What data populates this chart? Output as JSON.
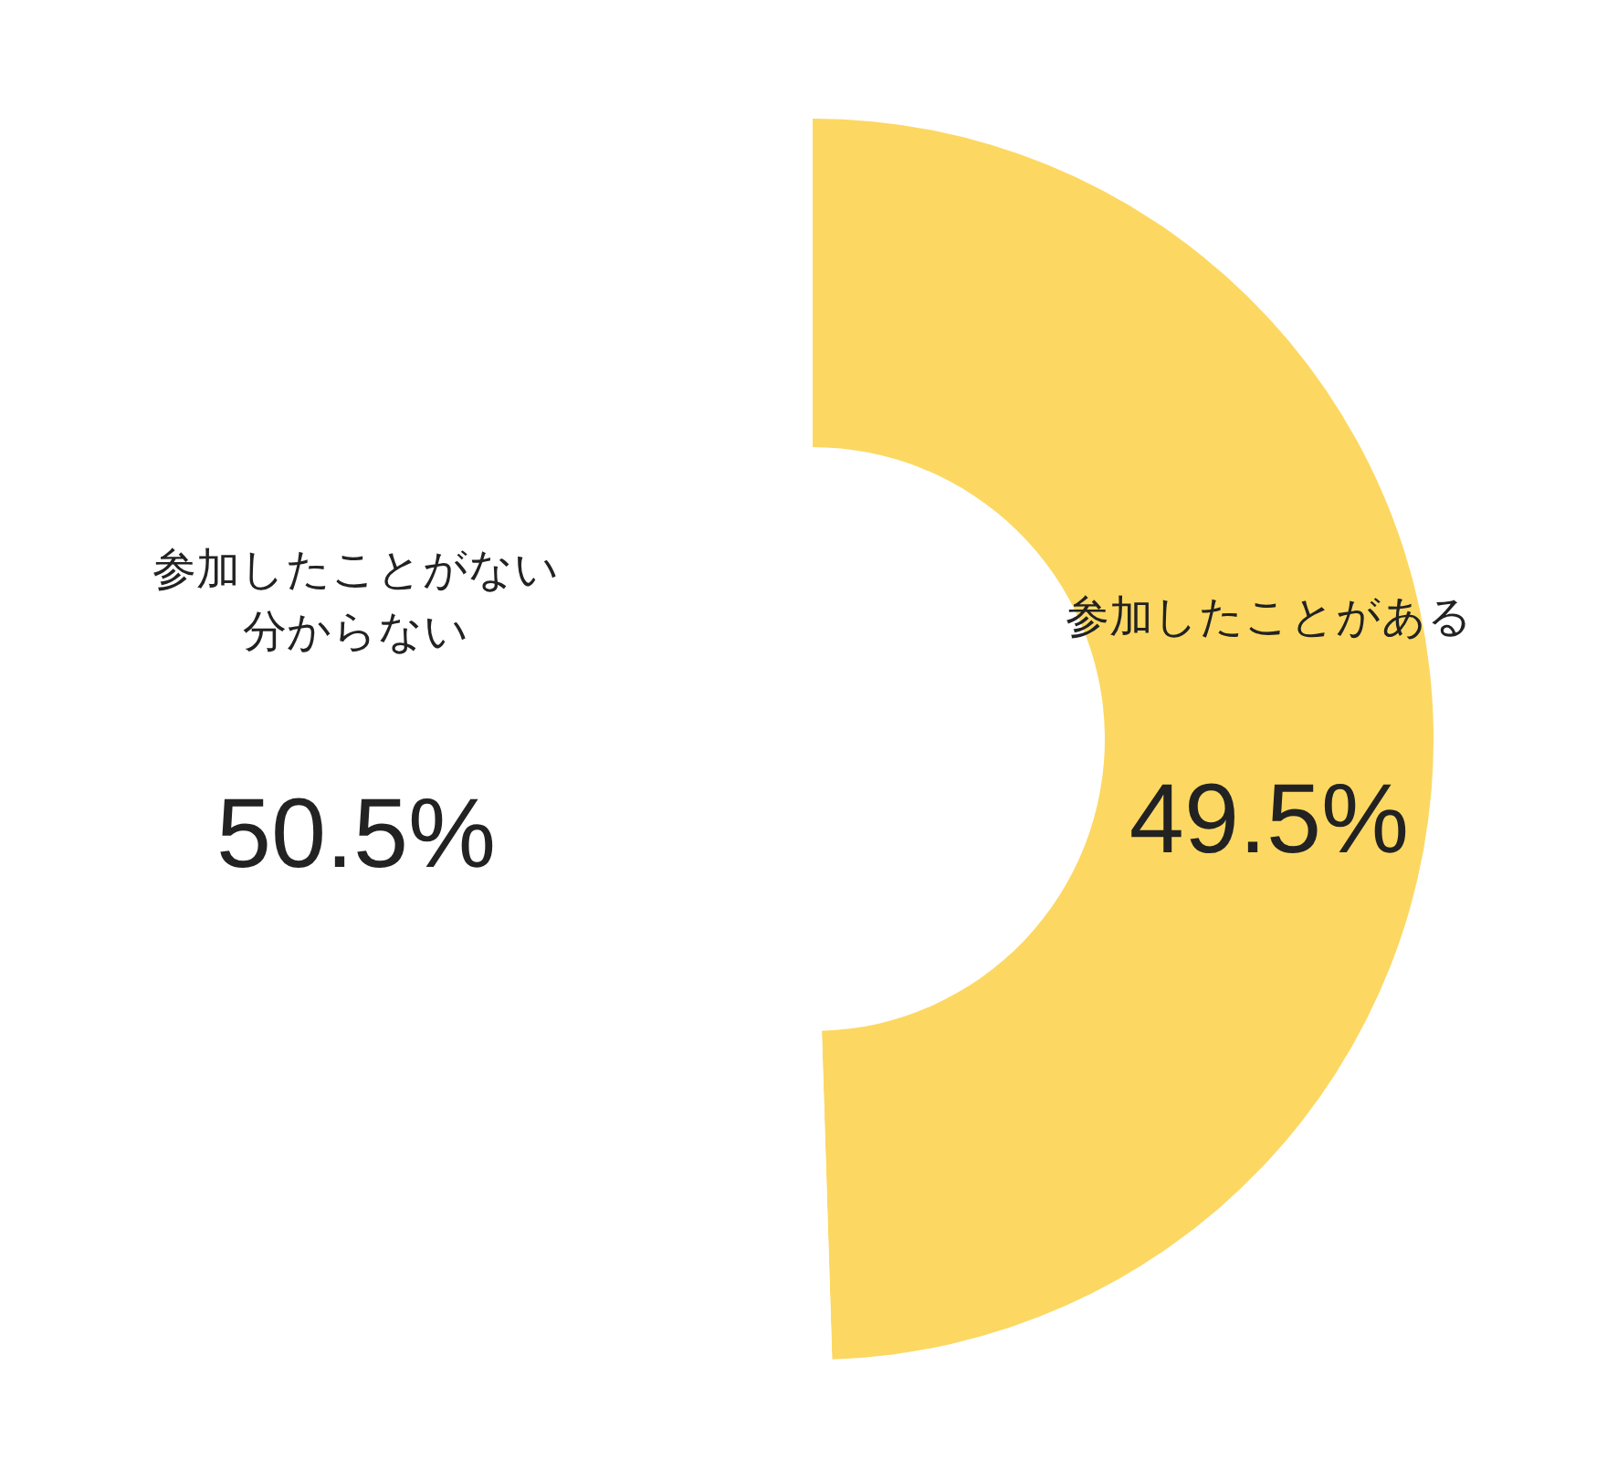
{
  "chart_data": {
    "type": "donut",
    "categories": [
      "参加したことがある",
      "参加したことがない分からない"
    ],
    "values": [
      49.5,
      50.5
    ],
    "value_labels": [
      "49.5%",
      "50.5%"
    ],
    "colors": [
      "#fcd862",
      "#ffffff"
    ]
  }
}
